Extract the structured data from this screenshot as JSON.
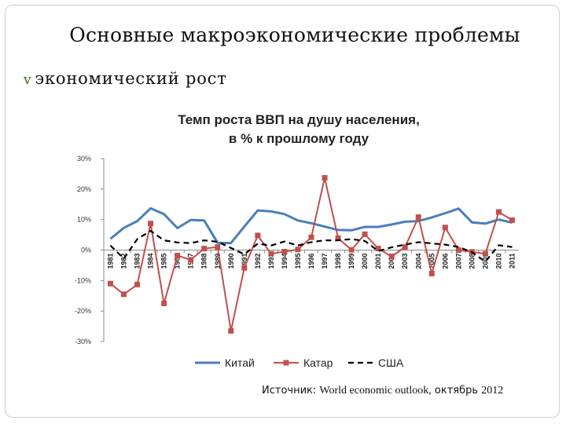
{
  "slide": {
    "title": "Основные макроэкономические проблемы",
    "bullet": "экономический рост",
    "bullet_marker": "v",
    "source_prefix": "Источник:",
    "source_body": "World economic outlook,",
    "source_month": "октябрь",
    "source_year": "2012"
  },
  "colors": {
    "china": "#4a7ebb",
    "qatar": "#c0504d",
    "usa": "#000000"
  },
  "chart_data": {
    "type": "line",
    "title_line1": "Темп роста ВВП на душу населения,",
    "title_line2": "в % к прошлому году",
    "ylim": [
      -30,
      30
    ],
    "yticks": [
      30,
      20,
      10,
      0,
      -10,
      -20,
      -30
    ],
    "ytick_labels": [
      "30%",
      "20%",
      "10%",
      "0%",
      "-10%",
      "-20%",
      "-30%"
    ],
    "categories": [
      "1981",
      "1982",
      "1983",
      "1984",
      "1985",
      "1986",
      "1987",
      "1988",
      "1989",
      "1990",
      "1991",
      "1992",
      "1993",
      "1994",
      "1995",
      "1996",
      "1997",
      "1998",
      "1999",
      "2000",
      "2001",
      "2002",
      "2003",
      "2004",
      "2005",
      "2006",
      "2007",
      "2008",
      "2009",
      "2010",
      "2011"
    ],
    "series": [
      {
        "name": "Китай",
        "style": "solid",
        "values": [
          3.7,
          7.3,
          9.5,
          13.7,
          11.8,
          7.2,
          9.9,
          9.7,
          2.4,
          2.3,
          7.7,
          13.0,
          12.7,
          11.8,
          9.7,
          8.8,
          7.7,
          6.6,
          6.5,
          7.6,
          7.6,
          8.4,
          9.3,
          9.5,
          10.7,
          12.1,
          13.6,
          9.1,
          8.7,
          10.0,
          9.0
        ]
      },
      {
        "name": "Катар",
        "style": "markers",
        "values": [
          -11,
          -14.5,
          -11.3,
          8.7,
          -17.5,
          -1.8,
          -3.2,
          0.5,
          1.0,
          -26.5,
          -5.8,
          4.8,
          -1.2,
          -0.5,
          0.2,
          4.2,
          23.7,
          3.9,
          0.1,
          5.2,
          0.5,
          -2.1,
          1.0,
          10.8,
          -7.7,
          7.4,
          0.0,
          -0.6,
          -1.2,
          12.5,
          9.8
        ]
      },
      {
        "name": "США",
        "style": "dashed",
        "values": [
          1.5,
          -2.8,
          3.6,
          6.3,
          3.2,
          2.5,
          2.3,
          3.2,
          2.7,
          0.7,
          -1.4,
          2.1,
          1.5,
          2.8,
          1.5,
          2.6,
          3.2,
          3.2,
          3.6,
          3.0,
          -0.3,
          0.9,
          1.8,
          2.6,
          2.2,
          1.8,
          1.0,
          -0.7,
          -3.8,
          1.6,
          1.0
        ]
      }
    ]
  }
}
